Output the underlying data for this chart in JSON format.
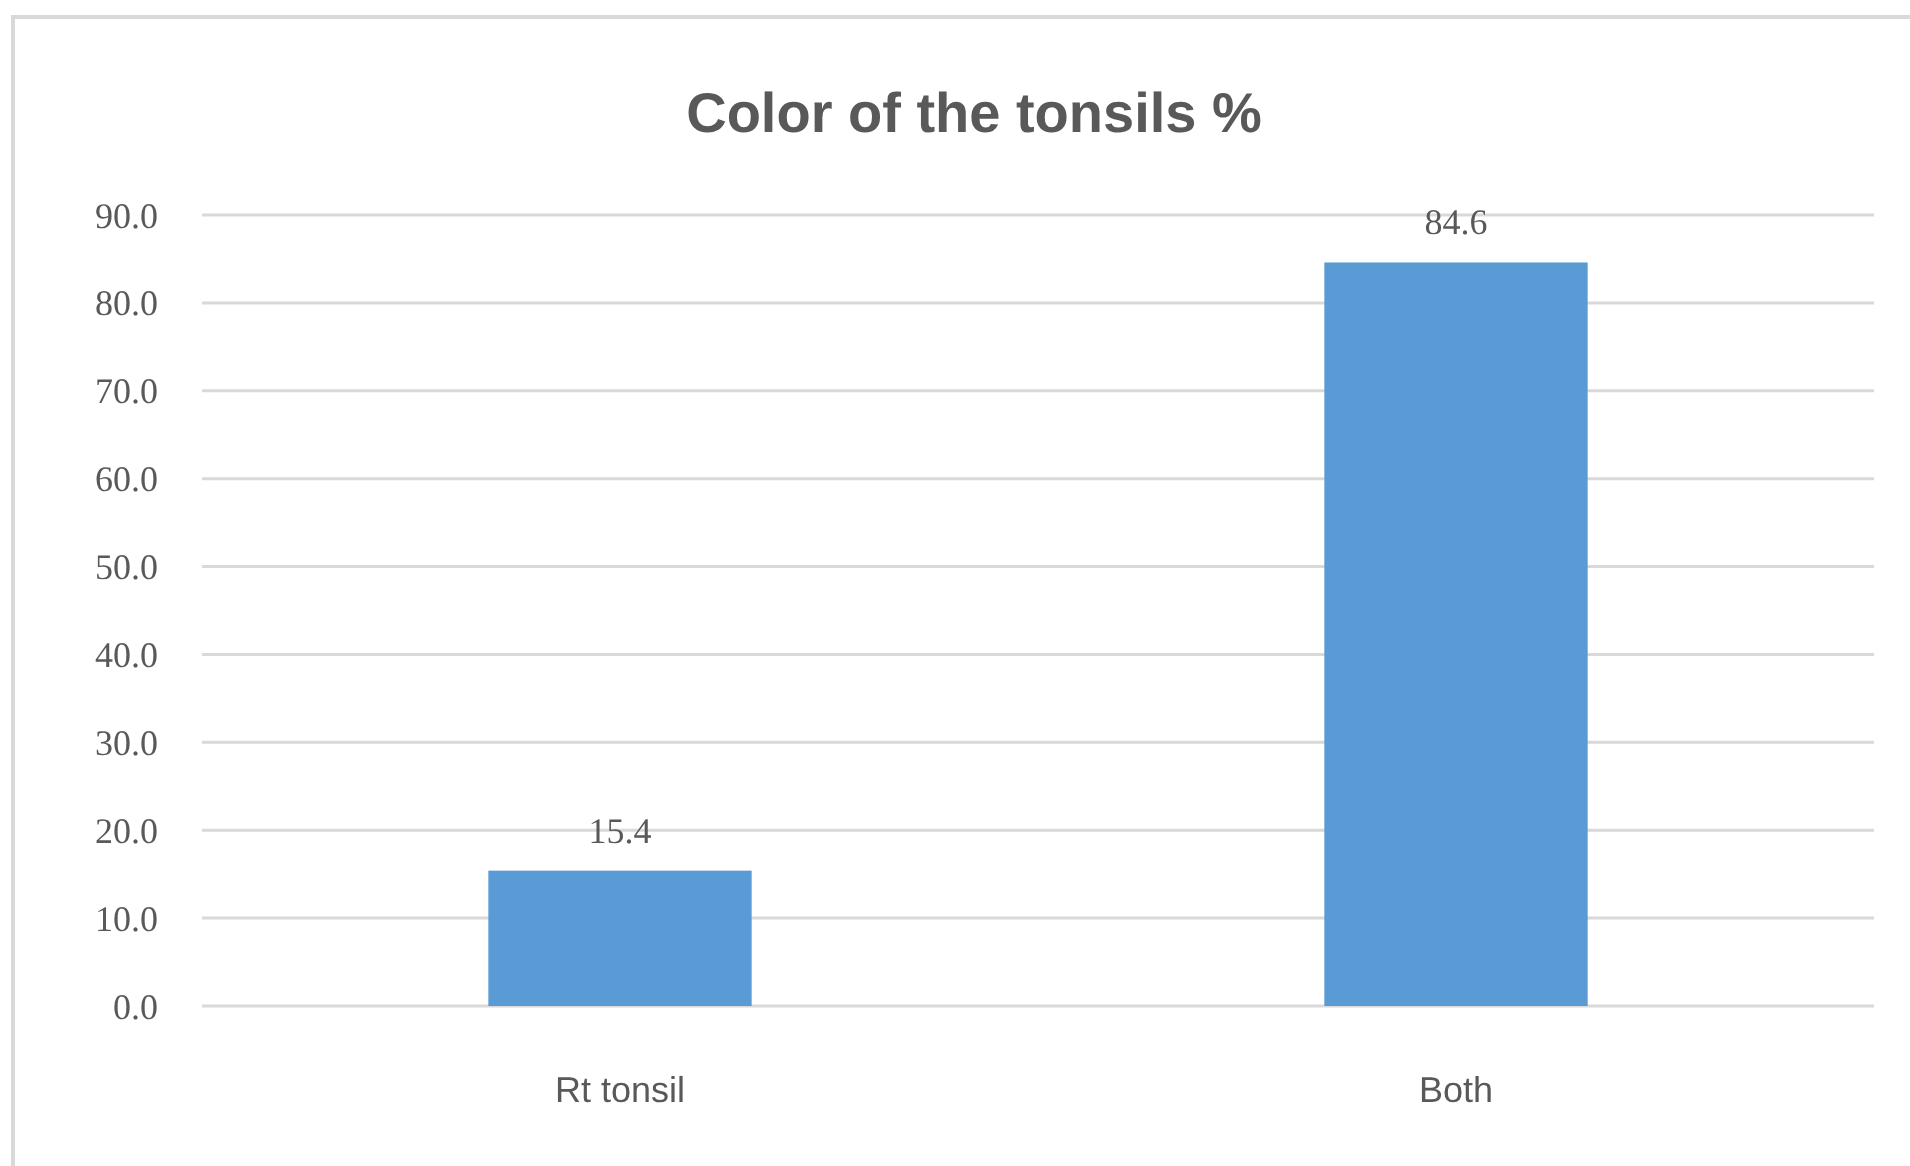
{
  "chart_data": {
    "type": "bar",
    "title": "Color of the tonsils %",
    "categories": [
      "Rt tonsil",
      "Both"
    ],
    "values": [
      15.4,
      84.6
    ],
    "color": "#5b9bd5",
    "ylim": [
      0,
      90
    ],
    "yticks": [
      {
        "value": 0,
        "label": "0.0"
      },
      {
        "value": 10,
        "label": "10.0"
      },
      {
        "value": 20,
        "label": "20.0"
      },
      {
        "value": 30,
        "label": "30.0"
      },
      {
        "value": 40,
        "label": "40.0"
      },
      {
        "value": 50,
        "label": "50.0"
      },
      {
        "value": 60,
        "label": "60.0"
      },
      {
        "value": 70,
        "label": "70.0"
      },
      {
        "value": 80,
        "label": "80.0"
      },
      {
        "value": 90,
        "label": "90.0"
      }
    ],
    "grid": "y",
    "data_labels": true
  }
}
